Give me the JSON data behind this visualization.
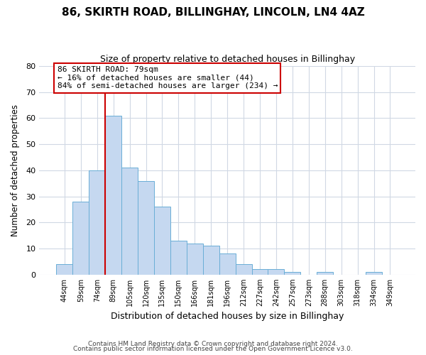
{
  "title": "86, SKIRTH ROAD, BILLINGHAY, LINCOLN, LN4 4AZ",
  "subtitle": "Size of property relative to detached houses in Billinghay",
  "xlabel": "Distribution of detached houses by size in Billinghay",
  "ylabel": "Number of detached properties",
  "bin_labels": [
    "44sqm",
    "59sqm",
    "74sqm",
    "89sqm",
    "105sqm",
    "120sqm",
    "135sqm",
    "150sqm",
    "166sqm",
    "181sqm",
    "196sqm",
    "212sqm",
    "227sqm",
    "242sqm",
    "257sqm",
    "273sqm",
    "288sqm",
    "303sqm",
    "318sqm",
    "334sqm",
    "349sqm"
  ],
  "bar_heights": [
    4,
    28,
    40,
    61,
    41,
    36,
    26,
    13,
    12,
    11,
    8,
    4,
    2,
    2,
    1,
    0,
    1,
    0,
    0,
    1,
    0
  ],
  "bar_color": "#c5d8f0",
  "bar_edge_color": "#6aaed6",
  "property_line_x": 2.5,
  "property_line_color": "#cc0000",
  "annotation_text": "86 SKIRTH ROAD: 79sqm\n← 16% of detached houses are smaller (44)\n84% of semi-detached houses are larger (234) →",
  "annotation_box_color": "#ffffff",
  "annotation_box_edge": "#cc0000",
  "ylim": [
    0,
    80
  ],
  "yticks": [
    0,
    10,
    20,
    30,
    40,
    50,
    60,
    70,
    80
  ],
  "footer_line1": "Contains HM Land Registry data © Crown copyright and database right 2024.",
  "footer_line2": "Contains public sector information licensed under the Open Government Licence v3.0.",
  "background_color": "#ffffff",
  "grid_color": "#d0d8e4"
}
